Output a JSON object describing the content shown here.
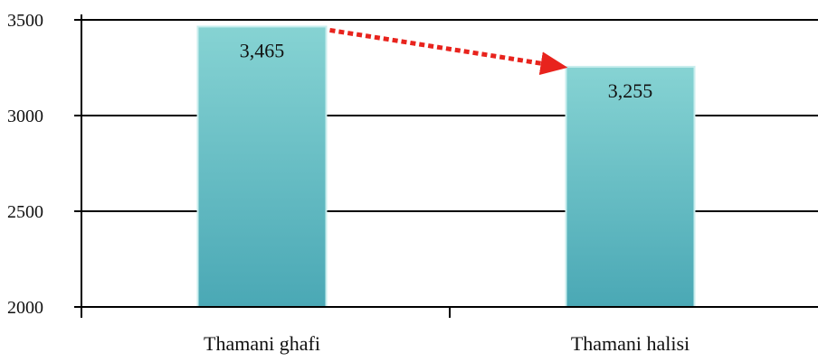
{
  "chart_data": {
    "type": "bar",
    "categories": [
      "Thamani ghafi",
      "Thamani halisi"
    ],
    "values": [
      3465,
      3255
    ],
    "data_labels": [
      "3,465",
      "3,255"
    ],
    "title": "",
    "xlabel": "",
    "ylabel": "",
    "ylim": [
      2000,
      3500
    ],
    "yticks": [
      2000,
      2500,
      3000,
      3500
    ],
    "ytick_labels": [
      "2000",
      "2500",
      "3000",
      "3500"
    ],
    "grid": true,
    "legend": "none",
    "bar_color_top": "#86d3d3",
    "bar_color_bottom": "#4aa8b5",
    "annotation": {
      "type": "arrow",
      "style": "dotted",
      "color": "#e8231d",
      "from": "Thamani ghafi",
      "to": "Thamani halisi"
    }
  }
}
